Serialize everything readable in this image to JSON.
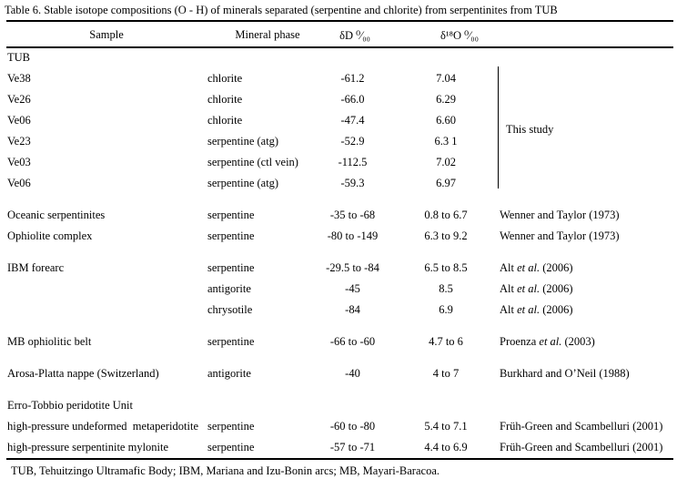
{
  "title": "Table 6. Stable isotope compositions (O - H) of minerals separated (serpentine and chlorite) from serpentinites from TUB",
  "columns": {
    "sample": "Sample",
    "mineral": "Mineral phase",
    "dD": "δD ⁰⁄₀₀",
    "d18O": "δ¹⁸O ⁰⁄₀₀"
  },
  "this_study_label": "This study",
  "rows": [
    {
      "sample": "TUB",
      "mineral": "",
      "dD": "",
      "d18O": "",
      "ref_pre": "",
      "ref_it": "",
      "ref_post": ""
    },
    {
      "sample": "Ve38",
      "mineral": "chlorite",
      "dD": "-61.2",
      "d18O": "7.04",
      "ref_pre": "",
      "ref_it": "",
      "ref_post": ""
    },
    {
      "sample": "Ve26",
      "mineral": "chlorite",
      "dD": "-66.0",
      "d18O": "6.29",
      "ref_pre": "",
      "ref_it": "",
      "ref_post": ""
    },
    {
      "sample": "Ve06",
      "mineral": "chlorite",
      "dD": "-47.4",
      "d18O": "6.60",
      "ref_pre": "",
      "ref_it": "",
      "ref_post": ""
    },
    {
      "sample": "Ve23",
      "mineral": "serpentine (atg)",
      "dD": "-52.9",
      "d18O": "6.3 1",
      "ref_pre": "",
      "ref_it": "",
      "ref_post": ""
    },
    {
      "sample": "Ve03",
      "mineral": "serpentine (ctl vein)",
      "dD": "-112.5",
      "d18O": "7.02",
      "ref_pre": "",
      "ref_it": "",
      "ref_post": ""
    },
    {
      "sample": "Ve06",
      "mineral": "serpentine (atg)",
      "dD": "-59.3",
      "d18O": "6.97",
      "ref_pre": "",
      "ref_it": "",
      "ref_post": ""
    },
    {
      "sample": "Oceanic serpentinites",
      "mineral": "serpentine",
      "dD": "-35 to -68",
      "d18O": "0.8 to 6.7",
      "ref_pre": "Wenner and Taylor (1973)",
      "ref_it": "",
      "ref_post": "",
      "gap": true
    },
    {
      "sample": "Ophiolite complex",
      "mineral": "serpentine",
      "dD": "-80 to -149",
      "d18O": "6.3 to 9.2",
      "ref_pre": "Wenner and Taylor (1973)",
      "ref_it": "",
      "ref_post": ""
    },
    {
      "sample": "IBM forearc",
      "mineral": "serpentine",
      "dD": "-29.5 to -84",
      "d18O": "6.5 to 8.5",
      "ref_pre": "Alt ",
      "ref_it": "et al.",
      "ref_post": " (2006)",
      "gap": true
    },
    {
      "sample": "",
      "mineral": "antigorite",
      "dD": "-45",
      "d18O": "8.5",
      "ref_pre": "Alt ",
      "ref_it": "et al.",
      "ref_post": " (2006)"
    },
    {
      "sample": "",
      "mineral": "chrysotile",
      "dD": "-84",
      "d18O": "6.9",
      "ref_pre": "Alt ",
      "ref_it": "et al.",
      "ref_post": " (2006)"
    },
    {
      "sample": "MB ophiolitic belt",
      "mineral": "serpentine",
      "dD": "-66 to -60",
      "d18O": "4.7 to 6",
      "ref_pre": "Proenza ",
      "ref_it": "et al.",
      "ref_post": " (2003)",
      "gap": true
    },
    {
      "sample": "Arosa-Platta nappe (Switzerland)",
      "mineral": "antigorite",
      "dD": "-40",
      "d18O": "4 to 7",
      "ref_pre": "Burkhard and O’Neil (1988)",
      "ref_it": "",
      "ref_post": "",
      "gap": true
    },
    {
      "sample": "Erro-Tobbio peridotite Unit",
      "mineral": "",
      "dD": "",
      "d18O": "",
      "ref_pre": "",
      "ref_it": "",
      "ref_post": "",
      "gap": true
    },
    {
      "sample": "high-pressure undeformed  metaperidotite",
      "mineral": "serpentine",
      "dD": "-60 to -80",
      "d18O": "5.4 to 7.1",
      "ref_pre": "Früh-Green and Scambelluri (2001)",
      "ref_it": "",
      "ref_post": ""
    },
    {
      "sample": "high-pressure serpentinite mylonite",
      "mineral": "serpentine",
      "dD": "-57 to -71",
      "d18O": "4.4 to 6.9",
      "ref_pre": "Früh-Green and Scambelluri (2001)",
      "ref_it": "",
      "ref_post": ""
    }
  ],
  "footnote": "TUB, Tehuitzingo Ultramafic Body; IBM, Mariana and Izu-Bonin arcs; MB, Mayari-Baracoa.",
  "colors": {
    "text": "#000000",
    "background": "#ffffff",
    "rule": "#000000"
  }
}
